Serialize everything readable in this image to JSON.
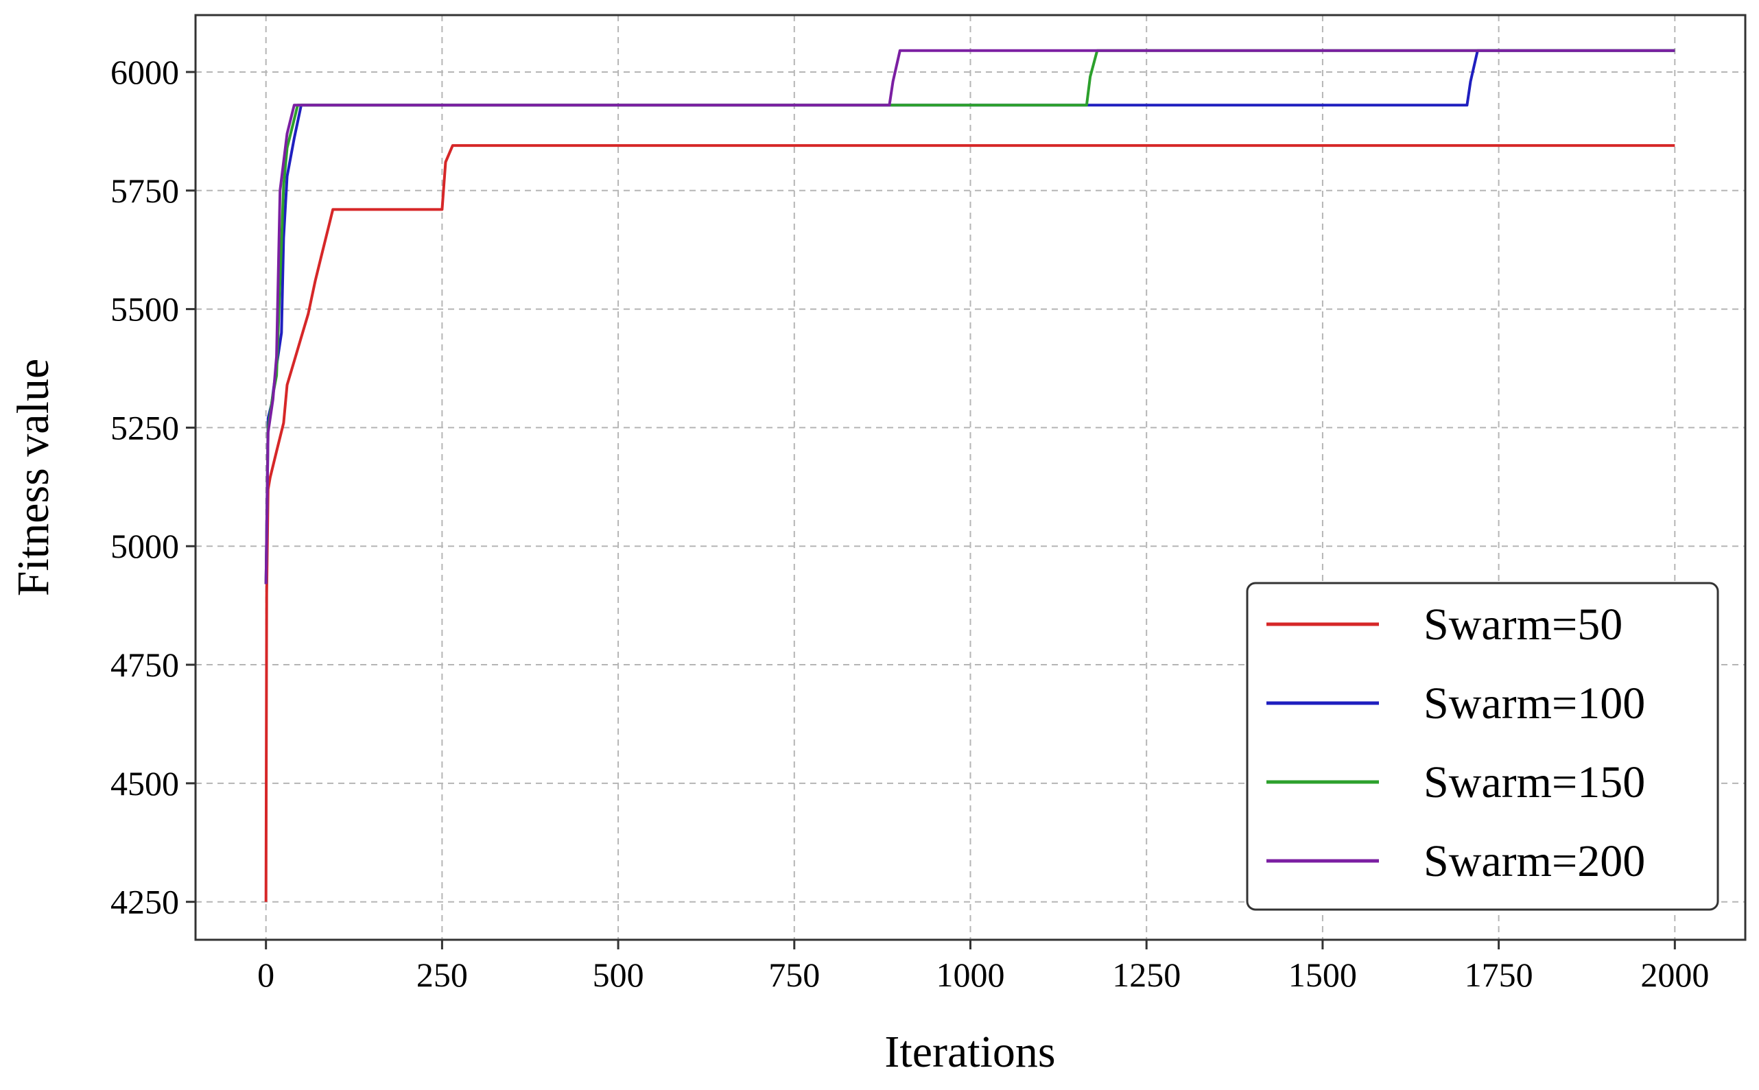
{
  "chart_data": {
    "type": "line",
    "title": "",
    "xlabel": "Iterations",
    "ylabel": "Fitness value",
    "xlim": [
      -100,
      2100
    ],
    "ylim": [
      4170,
      6120
    ],
    "x_ticks": [
      0,
      250,
      500,
      750,
      1000,
      1250,
      1500,
      1750,
      2000
    ],
    "x_tick_labels": [
      "0",
      "250",
      "500",
      "750",
      "1000",
      "1250",
      "1500",
      "1750",
      "2000"
    ],
    "y_ticks": [
      4250,
      4500,
      4750,
      5000,
      5250,
      5500,
      5750,
      6000
    ],
    "y_tick_labels": [
      "4250",
      "4500",
      "4750",
      "5000",
      "5250",
      "5500",
      "5750",
      "6000"
    ],
    "grid": true,
    "legend_position": "bottom-right",
    "series": [
      {
        "name": "Swarm=50",
        "color": "#d62728",
        "points": [
          [
            0,
            4250
          ],
          [
            1,
            4900
          ],
          [
            3,
            5120
          ],
          [
            6,
            5145
          ],
          [
            15,
            5200
          ],
          [
            25,
            5260
          ],
          [
            30,
            5340
          ],
          [
            40,
            5390
          ],
          [
            50,
            5440
          ],
          [
            60,
            5490
          ],
          [
            70,
            5560
          ],
          [
            80,
            5620
          ],
          [
            90,
            5680
          ],
          [
            95,
            5710
          ],
          [
            250,
            5710
          ],
          [
            255,
            5810
          ],
          [
            265,
            5845
          ],
          [
            2000,
            5845
          ]
        ]
      },
      {
        "name": "Swarm=100",
        "color": "#1f1fbf",
        "points": [
          [
            0,
            4920
          ],
          [
            3,
            5270
          ],
          [
            8,
            5300
          ],
          [
            15,
            5380
          ],
          [
            22,
            5450
          ],
          [
            25,
            5650
          ],
          [
            30,
            5780
          ],
          [
            40,
            5860
          ],
          [
            50,
            5930
          ],
          [
            1705,
            5930
          ],
          [
            1710,
            5980
          ],
          [
            1720,
            6045
          ],
          [
            2000,
            6045
          ]
        ]
      },
      {
        "name": "Swarm=150",
        "color": "#2ca02c",
        "points": [
          [
            0,
            4920
          ],
          [
            3,
            5250
          ],
          [
            10,
            5320
          ],
          [
            15,
            5360
          ],
          [
            20,
            5560
          ],
          [
            25,
            5760
          ],
          [
            30,
            5840
          ],
          [
            40,
            5900
          ],
          [
            45,
            5930
          ],
          [
            1165,
            5930
          ],
          [
            1170,
            5990
          ],
          [
            1180,
            6045
          ],
          [
            2000,
            6045
          ]
        ]
      },
      {
        "name": "Swarm=200",
        "color": "#7b1fa2",
        "points": [
          [
            0,
            4920
          ],
          [
            3,
            5240
          ],
          [
            10,
            5310
          ],
          [
            15,
            5400
          ],
          [
            20,
            5750
          ],
          [
            30,
            5870
          ],
          [
            40,
            5930
          ],
          [
            885,
            5930
          ],
          [
            890,
            5980
          ],
          [
            900,
            6045
          ],
          [
            2000,
            6045
          ]
        ]
      }
    ]
  }
}
